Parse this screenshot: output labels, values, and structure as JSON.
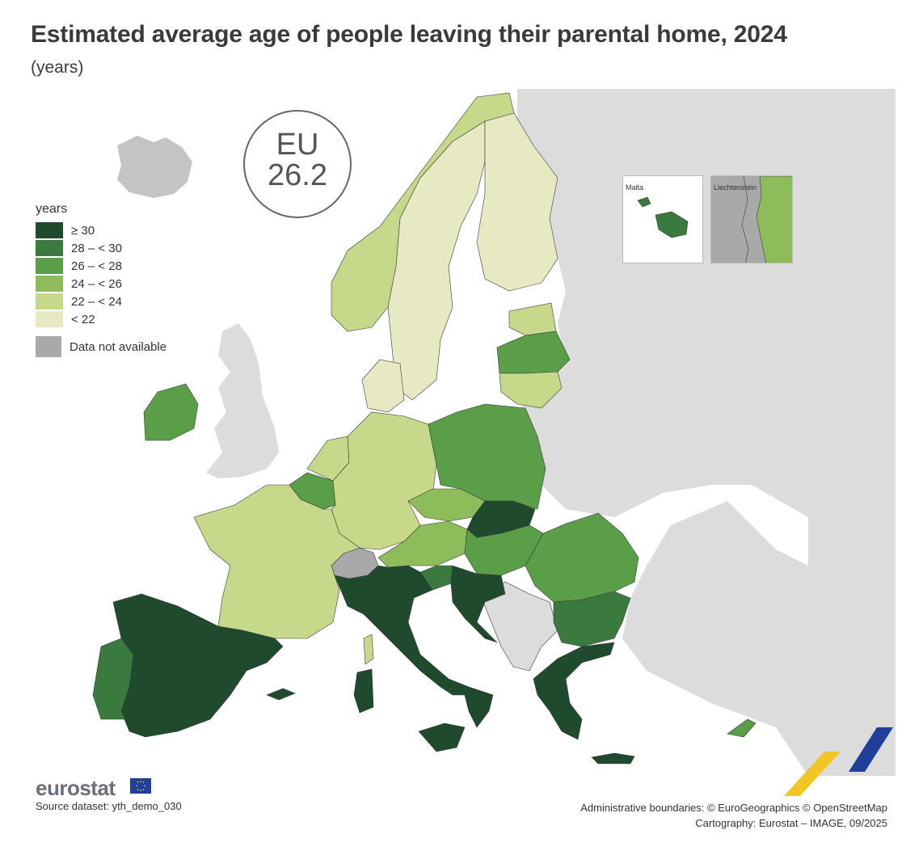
{
  "title": "Estimated average age of people leaving their parental home, 2024",
  "subtitle": "(years)",
  "eu_badge": {
    "label": "EU",
    "value": "26.2"
  },
  "legend": {
    "title": "years",
    "classes": [
      {
        "label": "≥ 30",
        "color": "#1f4a2e"
      },
      {
        "label": "28 – < 30",
        "color": "#3a7a3f"
      },
      {
        "label": "26 – < 28",
        "color": "#5a9e47"
      },
      {
        "label": "24 – < 26",
        "color": "#8fbc5a"
      },
      {
        "label": "22 – < 24",
        "color": "#c6d98a"
      },
      {
        "label": "< 22",
        "color": "#e6e9c2"
      }
    ],
    "not_available": {
      "label": "Data not available",
      "color": "#a9a9a9"
    }
  },
  "insets": {
    "malta": "Malta",
    "liechtenstein": "Liechtenstein"
  },
  "colors": {
    "non_eu": "#dcdcdc",
    "sea": "#ffffff",
    "border": "#3a3a3a"
  },
  "footer": {
    "logo": "eurostat",
    "source": "Source dataset: yth_demo_030",
    "boundaries": "Administrative boundaries: © EuroGeographics © OpenStreetMap",
    "cartography": "Cartography: Eurostat – IMAGE, 09/2025"
  }
}
